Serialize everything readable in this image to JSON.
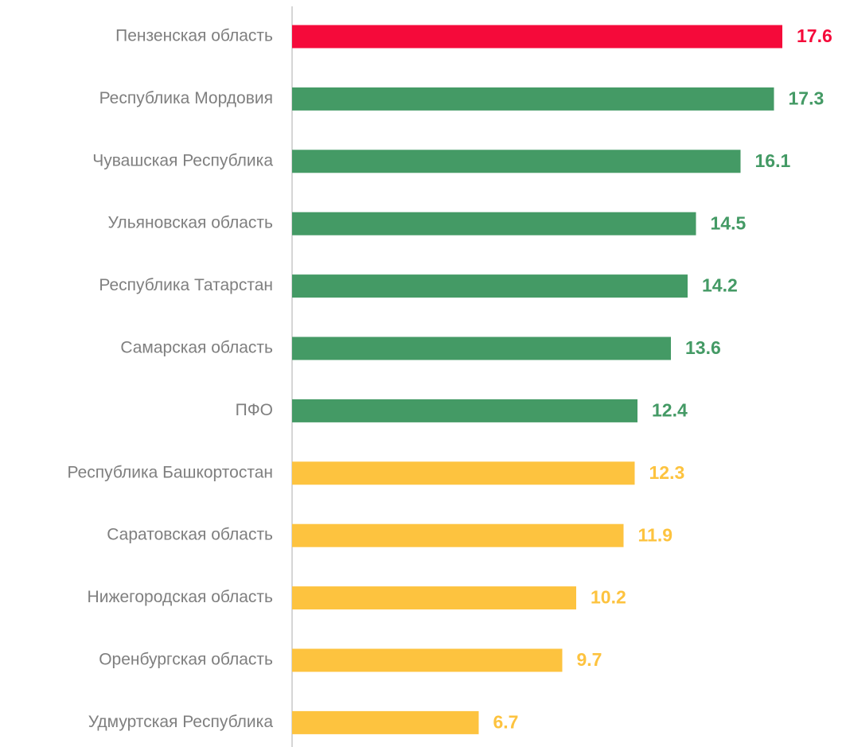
{
  "chart_data": {
    "type": "bar",
    "orientation": "horizontal",
    "categories": [
      "Пензенская область",
      "Республика Мордовия",
      "Чувашская Республика",
      "Ульяновская область",
      "Республика Татарстан",
      "Самарская область",
      "ПФО",
      "Республика Башкортостан",
      "Саратовская область",
      "Нижегородская область",
      "Оренбургская область",
      "Удмуртская Республика"
    ],
    "values": [
      17.6,
      17.3,
      16.1,
      14.5,
      14.2,
      13.6,
      12.4,
      12.3,
      11.9,
      10.2,
      9.7,
      6.7
    ],
    "colors": [
      "#f50a3a",
      "#449a65",
      "#449a65",
      "#449a65",
      "#449a65",
      "#449a65",
      "#449a65",
      "#fdc33f",
      "#fdc33f",
      "#fdc33f",
      "#fdc33f",
      "#fdc33f"
    ],
    "xlim": [
      0,
      18
    ],
    "grid": false
  }
}
